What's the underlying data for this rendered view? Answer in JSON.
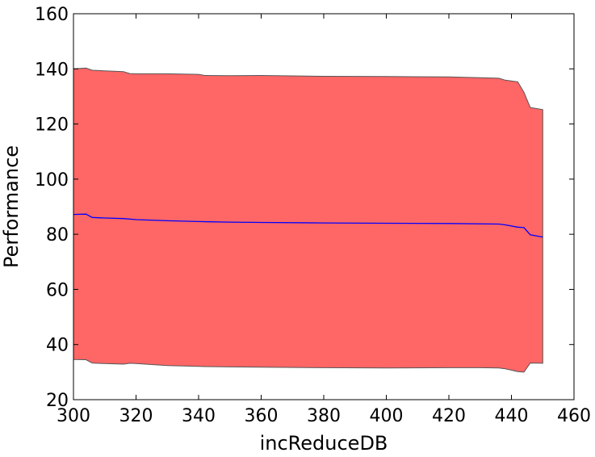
{
  "chart_data": {
    "type": "area",
    "title": "",
    "xlabel": "incReduceDB",
    "ylabel": "Performance",
    "xlim": [
      300,
      460
    ],
    "ylim": [
      20,
      160
    ],
    "xticks": [
      300,
      320,
      340,
      360,
      380,
      400,
      420,
      440,
      460
    ],
    "yticks": [
      20,
      40,
      60,
      80,
      100,
      120,
      140,
      160
    ],
    "grid": false,
    "legend": "none",
    "colors": {
      "band_fill": "#ff6666",
      "band_edge": "#555555",
      "mean_line": "#0000ff"
    },
    "series": [
      {
        "kind": "band",
        "x": [
          300,
          304,
          306,
          310,
          316,
          318,
          320,
          330,
          340,
          342,
          350,
          360,
          380,
          400,
          420,
          430,
          436,
          438,
          442,
          444,
          446,
          450
        ],
        "upper": [
          140,
          140.3,
          139.5,
          139.3,
          139,
          138.3,
          138.2,
          138.2,
          138,
          137.6,
          137.5,
          137.6,
          137.3,
          137.2,
          137.1,
          136.8,
          136.6,
          135.9,
          135.3,
          131.5,
          126,
          125.2
        ],
        "lower": [
          34.6,
          34.5,
          33.3,
          33.1,
          32.9,
          33.2,
          33.1,
          32.4,
          32.1,
          32.0,
          31.9,
          31.8,
          31.6,
          31.5,
          31.6,
          31.6,
          31.5,
          31.2,
          30.2,
          30.0,
          33.3,
          33.2
        ]
      },
      {
        "kind": "mean",
        "x": [
          300,
          304,
          306,
          310,
          316,
          320,
          330,
          340,
          350,
          360,
          380,
          400,
          420,
          436,
          438,
          442,
          444,
          446,
          450
        ],
        "y": [
          87.2,
          87.3,
          86.1,
          85.9,
          85.7,
          85.3,
          84.9,
          84.6,
          84.4,
          84.3,
          84.1,
          84.0,
          83.9,
          83.7,
          83.4,
          82.6,
          82.4,
          79.8,
          79.0
        ]
      }
    ]
  }
}
